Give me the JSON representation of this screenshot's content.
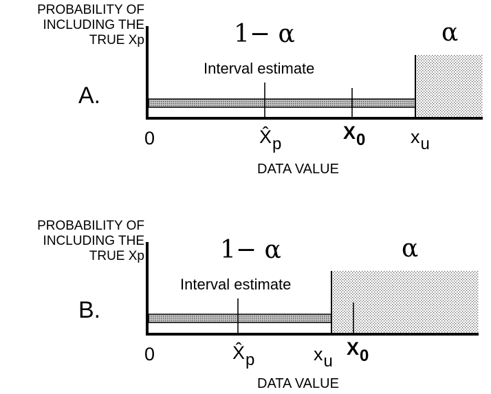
{
  "panels": [
    {
      "id": "A",
      "y_label": [
        "PROBABILITY OF",
        "INCLUDING THE",
        "TRUE Xp"
      ],
      "panel_label": "A.",
      "confidence_label": "1− α",
      "alpha_label": "α",
      "interval_label": "Interval estimate",
      "zero_label": "0",
      "xp_hat_label": "X̂",
      "xp_hat_sub": "p",
      "x0_label": "X",
      "x0_sub": "0",
      "xu_label": "x",
      "xu_sub": "u",
      "x_axis_label": "DATA VALUE"
    },
    {
      "id": "B",
      "y_label": [
        "PROBABILITY OF",
        "INCLUDING THE",
        "TRUE Xp"
      ],
      "panel_label": "B.",
      "confidence_label": "1− α",
      "alpha_label": "α",
      "interval_label": "Interval estimate",
      "zero_label": "0",
      "xp_hat_label": "X̂",
      "xp_hat_sub": "p",
      "x0_label": "X",
      "x0_sub": "0",
      "xu_label": "x",
      "xu_sub": "u",
      "x_axis_label": "DATA VALUE"
    }
  ],
  "colors": {
    "ink": "#000000",
    "bar_fill": "#9a9a9a",
    "shade_fill": "#d9d9d9"
  }
}
